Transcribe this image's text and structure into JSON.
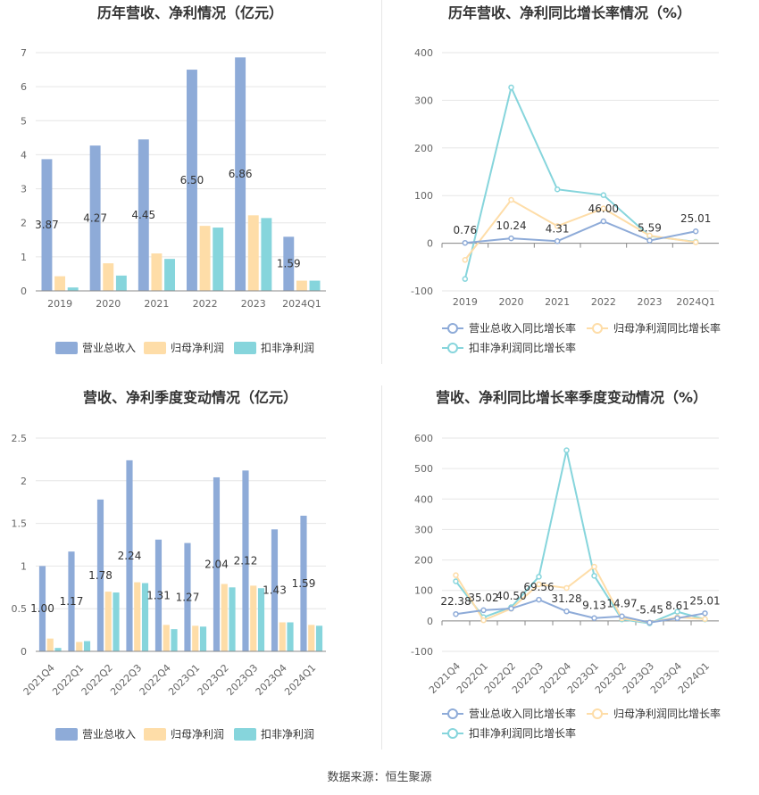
{
  "source": "数据来源：恒生聚源",
  "colors": {
    "revenue": "#8eabd8",
    "net_profit": "#fedda8",
    "deducted_profit": "#86d5dc",
    "line_revenue": "#8eabd8",
    "line_net": "#fedda8",
    "line_deducted": "#86d5dc"
  },
  "chart_data": [
    {
      "type": "bar",
      "title": "历年营收、净利情况（亿元）",
      "categories": [
        "2019",
        "2020",
        "2021",
        "2022",
        "2023",
        "2024Q1"
      ],
      "series": [
        {
          "name": "营业总收入",
          "values": [
            3.87,
            4.27,
            4.45,
            6.5,
            6.86,
            1.59
          ]
        },
        {
          "name": "归母净利润",
          "values": [
            0.43,
            0.81,
            1.1,
            1.91,
            2.22,
            0.3
          ]
        },
        {
          "name": "扣非净利润",
          "values": [
            0.1,
            0.45,
            0.94,
            1.86,
            2.14,
            0.3
          ]
        }
      ],
      "data_labels": [
        "3.87",
        "4.27",
        "4.45",
        "6.50",
        "6.86",
        "1.59"
      ],
      "yticks": [
        "0",
        "1",
        "2",
        "3",
        "4",
        "5",
        "6",
        "7"
      ],
      "ylim": [
        0,
        7
      ]
    },
    {
      "type": "line",
      "title": "历年营收、净利同比增长率情况（%）",
      "categories": [
        "2019",
        "2020",
        "2021",
        "2022",
        "2023",
        "2024Q1"
      ],
      "series": [
        {
          "name": "营业总收入同比增长率",
          "values": [
            0.76,
            10.24,
            4.31,
            46.0,
            5.59,
            25.01
          ]
        },
        {
          "name": "归母净利润同比增长率",
          "values": [
            -35,
            91,
            36,
            73,
            16,
            2
          ]
        },
        {
          "name": "扣非净利润同比增长率",
          "values": [
            -75,
            327,
            113,
            101,
            15,
            3
          ]
        }
      ],
      "data_labels": [
        "0.76",
        "10.24",
        "4.31",
        "46.00",
        "5.59",
        "25.01"
      ],
      "yticks": [
        "-100",
        "0",
        "100",
        "200",
        "300",
        "400"
      ],
      "ylim": [
        -100,
        400
      ]
    },
    {
      "type": "bar",
      "title": "营收、净利季度变动情况（亿元）",
      "categories": [
        "2021Q4",
        "2022Q1",
        "2022Q2",
        "2022Q3",
        "2022Q4",
        "2023Q1",
        "2023Q2",
        "2023Q3",
        "2023Q4",
        "2024Q1"
      ],
      "series": [
        {
          "name": "营业总收入",
          "values": [
            1.0,
            1.17,
            1.78,
            2.24,
            1.31,
            1.27,
            2.04,
            2.12,
            1.43,
            1.59
          ]
        },
        {
          "name": "归母净利润",
          "values": [
            0.15,
            0.11,
            0.7,
            0.81,
            0.31,
            0.3,
            0.79,
            0.77,
            0.34,
            0.31
          ]
        },
        {
          "name": "扣非净利润",
          "values": [
            0.04,
            0.12,
            0.69,
            0.8,
            0.26,
            0.29,
            0.75,
            0.74,
            0.34,
            0.3
          ]
        }
      ],
      "data_labels": [
        "1.00",
        "1.17",
        "1.78",
        "2.24",
        "1.31",
        "1.27",
        "2.04",
        "2.12",
        "1.43",
        "1.59"
      ],
      "yticks": [
        "0",
        "0.5",
        "1",
        "1.5",
        "2",
        "2.5"
      ],
      "ylim": [
        0,
        2.5
      ]
    },
    {
      "type": "line",
      "title": "营收、净利同比增长率季度变动情况（%）",
      "categories": [
        "2021Q4",
        "2022Q1",
        "2022Q2",
        "2022Q3",
        "2022Q4",
        "2023Q1",
        "2023Q2",
        "2023Q3",
        "2023Q4",
        "2024Q1"
      ],
      "series": [
        {
          "name": "营业总收入同比增长率",
          "values": [
            22.38,
            35.02,
            40.5,
            69.56,
            31.28,
            9.13,
            14.97,
            -5.45,
            8.61,
            25.01
          ]
        },
        {
          "name": "归母净利润同比增长率",
          "values": [
            150,
            2,
            40,
            120,
            108,
            178,
            8,
            -5,
            12,
            6
          ]
        },
        {
          "name": "扣非净利润同比增长率",
          "values": [
            130,
            12,
            45,
            145,
            560,
            148,
            5,
            -8,
            30,
            5
          ]
        }
      ],
      "data_labels": [
        "22.38",
        "35.02",
        "40.50",
        "69.56",
        "31.28",
        "9.13",
        "14.97",
        "-5.45",
        "8.61",
        "25.01"
      ],
      "yticks": [
        "-100",
        "0",
        "100",
        "200",
        "300",
        "400",
        "500",
        "600"
      ],
      "ylim": [
        -100,
        600
      ]
    }
  ]
}
